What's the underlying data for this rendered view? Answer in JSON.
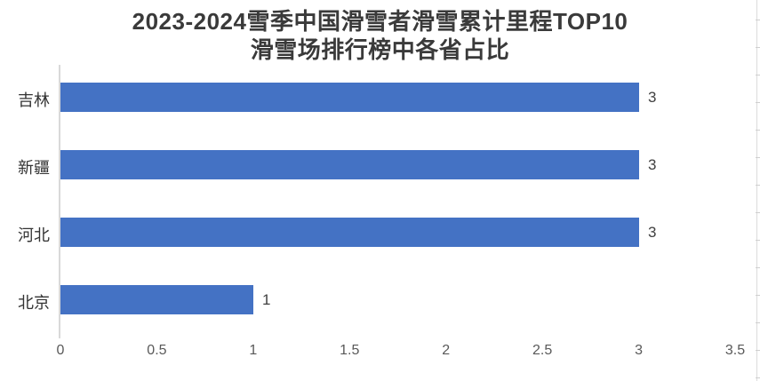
{
  "title": {
    "line1": "2023-2024雪季中国滑雪者滑雪累计里程TOP10",
    "line2": "滑雪场排行榜中各省占比"
  },
  "chart_data": {
    "type": "bar",
    "orientation": "horizontal",
    "title": "2023-2024雪季中国滑雪者滑雪累计里程TOP10 滑雪场排行榜中各省占比",
    "categories": [
      "吉林",
      "新疆",
      "河北",
      "北京"
    ],
    "values": [
      3,
      3,
      3,
      1
    ],
    "data_labels": [
      "3",
      "3",
      "3",
      "1"
    ],
    "xlabel": "",
    "ylabel": "",
    "xlim": [
      0,
      3.5
    ],
    "xticks": [
      0,
      0.5,
      1,
      1.5,
      2,
      2.5,
      3,
      3.5
    ],
    "xtick_labels": [
      "0",
      "0.5",
      "1",
      "1.5",
      "2",
      "2.5",
      "3",
      "3.5"
    ],
    "grid": "off",
    "legend": "none",
    "colors": {
      "bar": "#4472C4",
      "axis_line": "#d9d9d9",
      "tick_label": "#595959",
      "category_label": "#333333",
      "data_label": "#404040",
      "title": "#3a3a3a",
      "background": "#ffffff"
    }
  }
}
